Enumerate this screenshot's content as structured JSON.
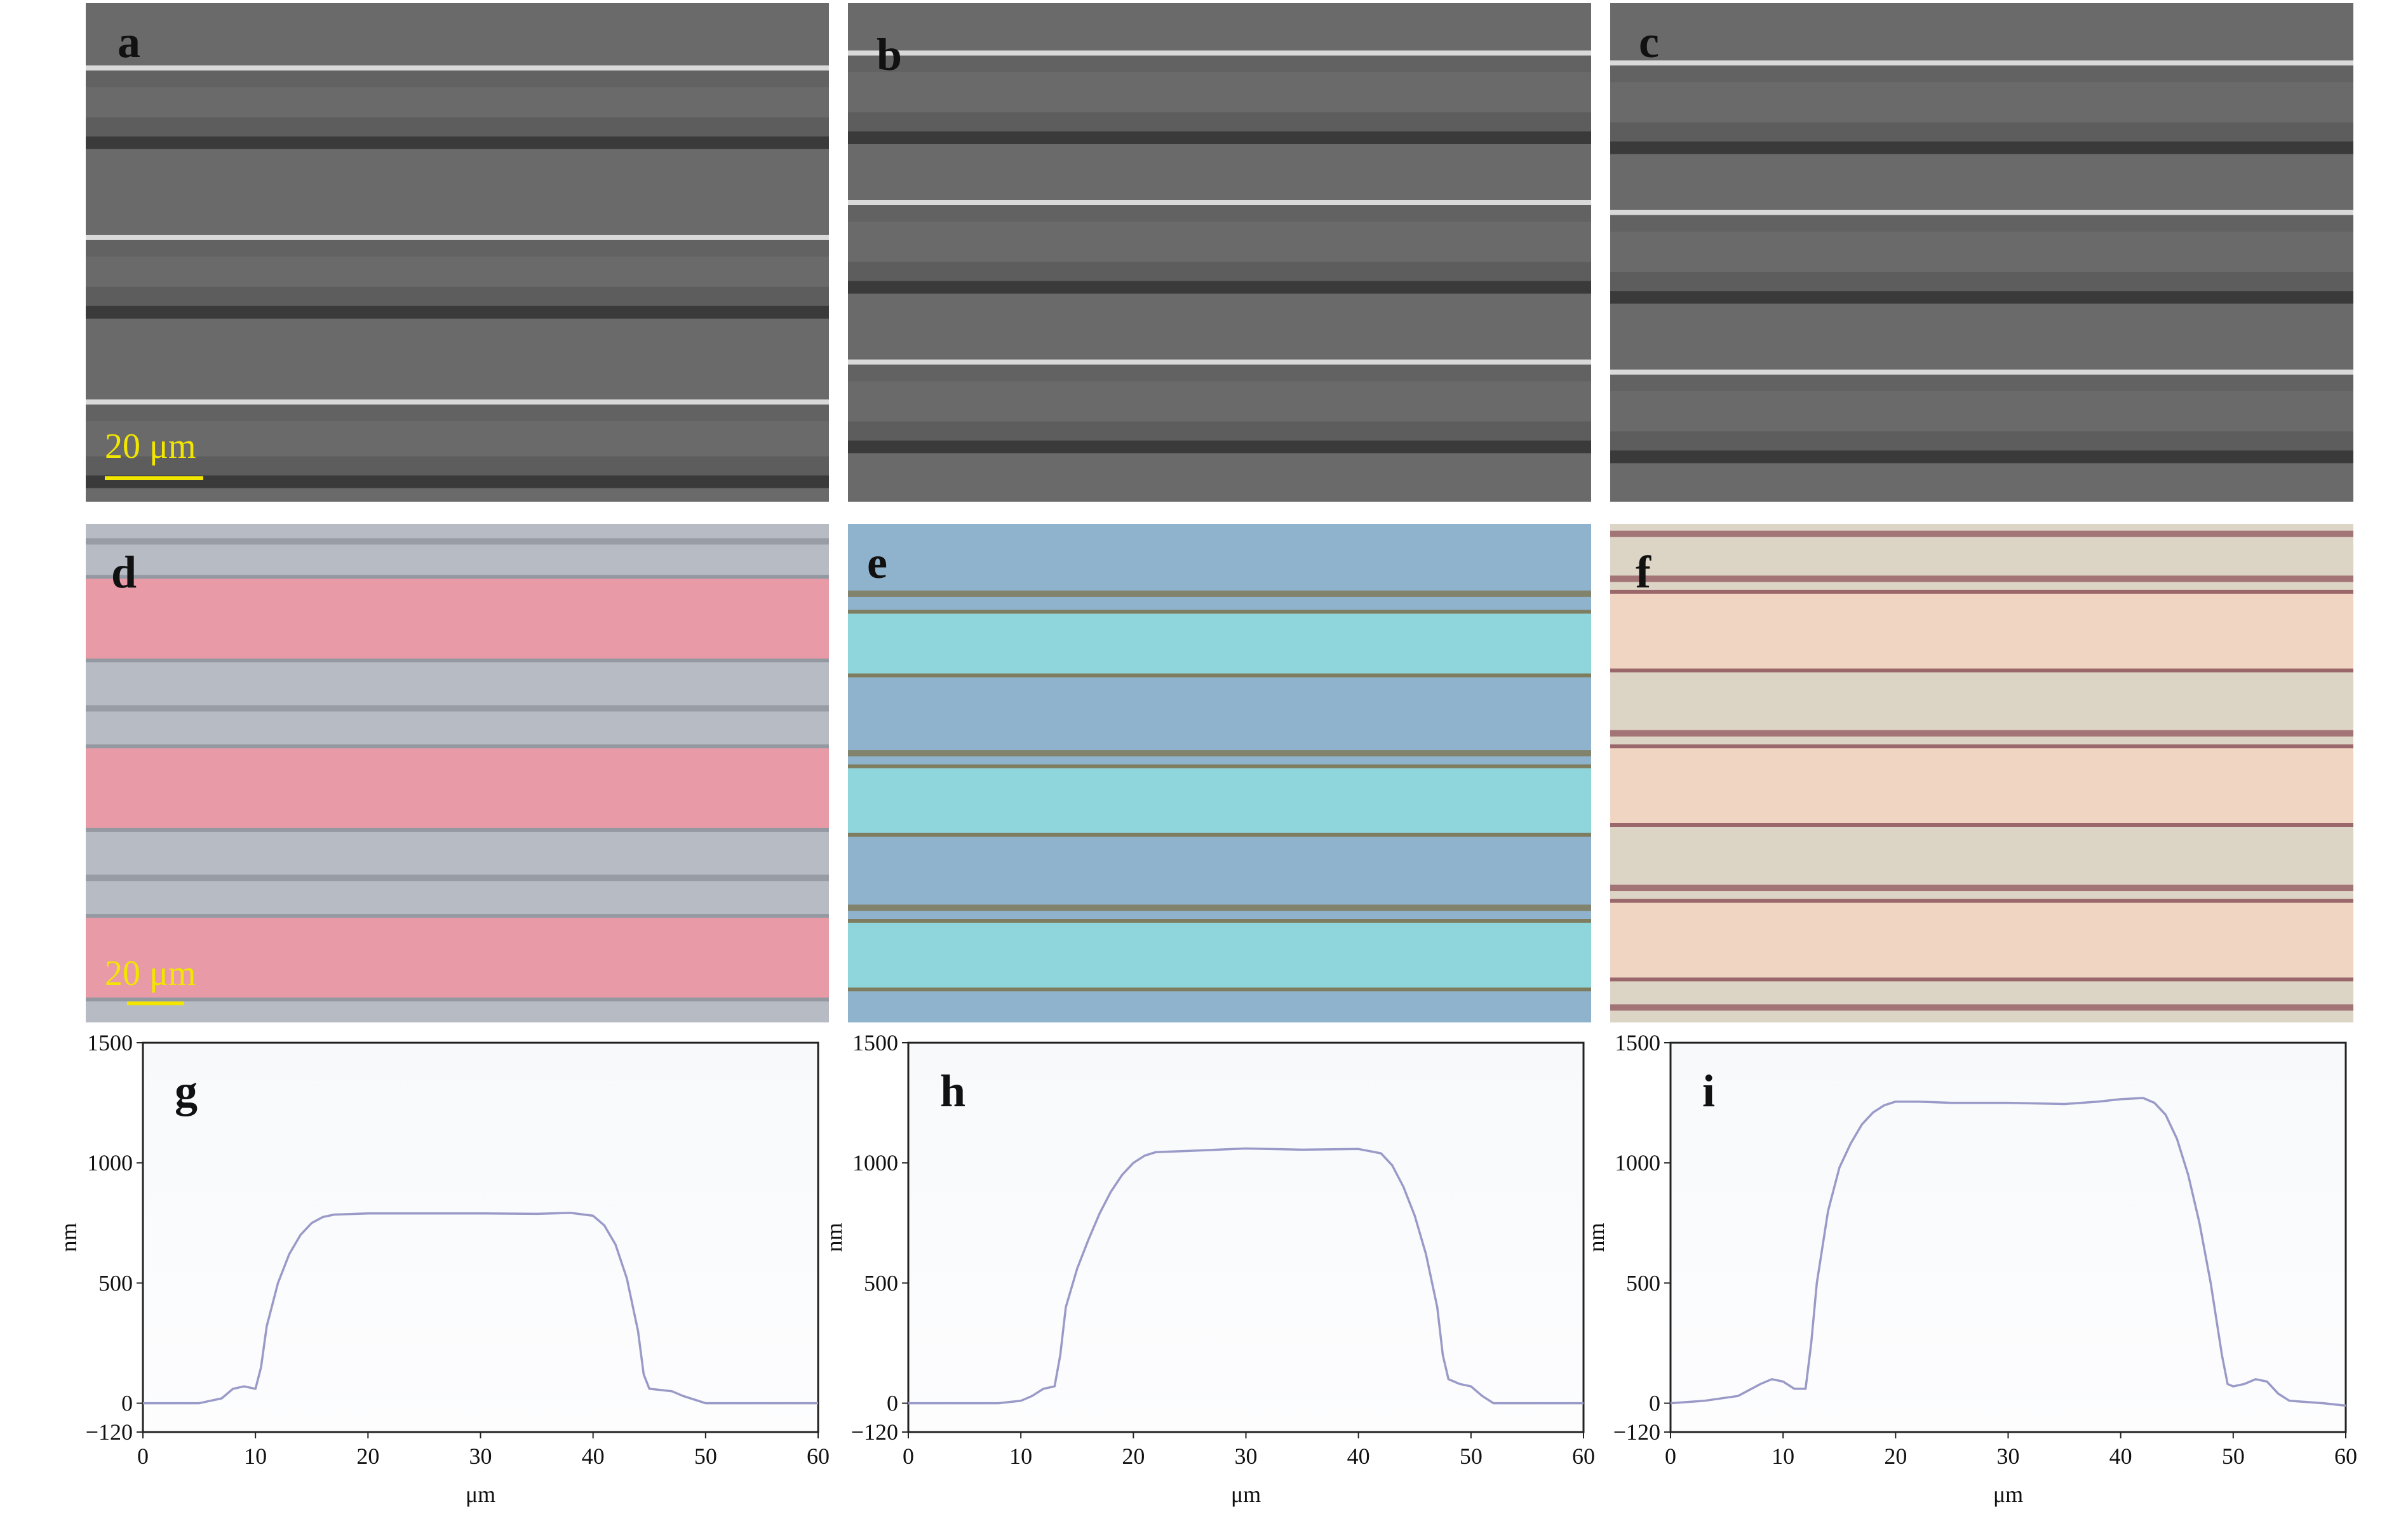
{
  "panels": {
    "sem": [
      {
        "label": "a",
        "scale_text": "20 μm",
        "stripes": [
          0.13,
          0.47,
          0.8
        ],
        "dark_lines": [
          0.28,
          0.62,
          0.96
        ]
      },
      {
        "label": "b",
        "scale_text": "",
        "stripes": [
          0.1,
          0.4,
          0.72
        ],
        "dark_lines": [
          0.27,
          0.57,
          0.89
        ]
      },
      {
        "label": "c",
        "scale_text": "",
        "stripes": [
          0.12,
          0.42,
          0.74
        ],
        "dark_lines": [
          0.29,
          0.59,
          0.91
        ]
      }
    ],
    "optical": [
      {
        "label": "d",
        "scale_text": "20 μm",
        "base": "#b7bcc4",
        "band": "#e89aa6",
        "edge": "#8a8f98"
      },
      {
        "label": "e",
        "scale_text": "",
        "base": "#8fb3cc",
        "band": "#8fd6dc",
        "edge": "#7a6f45"
      },
      {
        "label": "f",
        "scale_text": "",
        "base": "#dcd4c4",
        "band": "#f0d6c2",
        "edge": "#8a4b55"
      }
    ]
  },
  "colors": {
    "sem_bg": "#6a6a6a",
    "sem_dark": "#3a3a3a",
    "sem_light": "#d9d9d9",
    "profile_line": "#9a9ac8",
    "plot_bg_top": "#f7f9fb",
    "plot_bg_bottom": "#fdfdfe"
  },
  "chart_data": [
    {
      "type": "line",
      "label": "g",
      "xlabel": "μm",
      "ylabel": "nm",
      "xlim": [
        0,
        60
      ],
      "ylim": [
        -120,
        1500
      ],
      "xticks": [
        0,
        10,
        20,
        30,
        40,
        50,
        60
      ],
      "yticks": [
        -120,
        0,
        500,
        1000,
        1500
      ],
      "x": [
        0,
        5,
        7,
        8,
        9,
        10,
        10.5,
        11,
        12,
        13,
        14,
        15,
        16,
        17,
        20,
        25,
        30,
        35,
        38,
        40,
        41,
        42,
        43,
        44,
        44.5,
        45,
        46,
        47,
        48,
        50,
        55,
        60
      ],
      "y": [
        0,
        0,
        20,
        60,
        70,
        60,
        150,
        320,
        500,
        620,
        700,
        750,
        775,
        785,
        790,
        790,
        790,
        788,
        792,
        780,
        740,
        660,
        520,
        300,
        120,
        60,
        55,
        50,
        30,
        0,
        0,
        0
      ]
    },
    {
      "type": "line",
      "label": "h",
      "xlabel": "μm",
      "ylabel": "nm",
      "xlim": [
        0,
        60
      ],
      "ylim": [
        -120,
        1500
      ],
      "xticks": [
        0,
        10,
        20,
        30,
        40,
        50,
        60
      ],
      "yticks": [
        -120,
        0,
        500,
        1000,
        1500
      ],
      "x": [
        0,
        8,
        10,
        11,
        12,
        13,
        13.5,
        14,
        15,
        16,
        17,
        18,
        19,
        20,
        21,
        22,
        25,
        30,
        35,
        40,
        42,
        43,
        44,
        45,
        46,
        47,
        47.5,
        48,
        49,
        50,
        51,
        52,
        55,
        60
      ],
      "y": [
        0,
        0,
        10,
        30,
        60,
        70,
        200,
        400,
        560,
        680,
        790,
        880,
        950,
        1000,
        1030,
        1045,
        1050,
        1060,
        1055,
        1058,
        1040,
        990,
        900,
        780,
        620,
        400,
        200,
        100,
        80,
        70,
        30,
        0,
        0,
        0
      ]
    },
    {
      "type": "line",
      "label": "i",
      "xlabel": "μm",
      "ylabel": "nm",
      "xlim": [
        0,
        60
      ],
      "ylim": [
        -120,
        1500
      ],
      "xticks": [
        0,
        10,
        20,
        30,
        40,
        50,
        60
      ],
      "yticks": [
        -120,
        0,
        500,
        1000,
        1500
      ],
      "x": [
        0,
        3,
        6,
        8,
        9,
        10,
        11,
        12,
        12.5,
        13,
        14,
        15,
        16,
        17,
        18,
        19,
        20,
        22,
        25,
        30,
        35,
        38,
        40,
        42,
        43,
        44,
        45,
        46,
        47,
        48,
        49,
        49.5,
        50,
        51,
        52,
        53,
        54,
        55,
        58,
        60
      ],
      "y": [
        0,
        10,
        30,
        80,
        100,
        90,
        60,
        60,
        250,
        500,
        800,
        980,
        1080,
        1160,
        1210,
        1240,
        1255,
        1255,
        1250,
        1250,
        1245,
        1255,
        1265,
        1270,
        1250,
        1200,
        1100,
        950,
        750,
        500,
        200,
        80,
        70,
        80,
        100,
        90,
        40,
        10,
        0,
        -10
      ]
    }
  ]
}
